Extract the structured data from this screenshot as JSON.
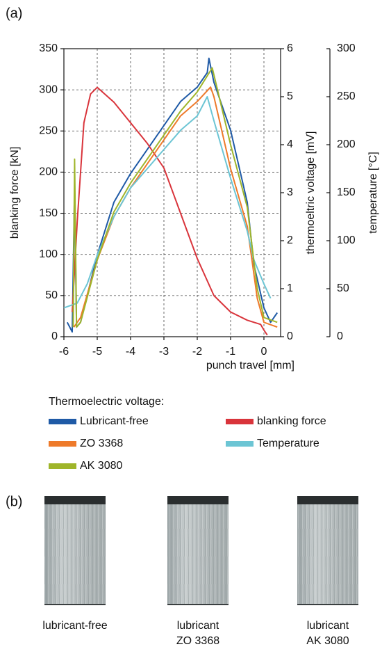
{
  "chart_data": {
    "type": "line",
    "panel_label": "(a)",
    "xlabel": "punch travel [mm]",
    "ylabel": "blanking force [kN]",
    "y2label": "thermoeltric voltage [mV]",
    "y3label": "temperature [°C]",
    "xlim": [
      -6,
      0.5
    ],
    "xticks": [
      -6,
      -5,
      -4,
      -3,
      -2,
      -1,
      0
    ],
    "ylim": [
      0,
      350
    ],
    "yticks": [
      0,
      50,
      100,
      150,
      200,
      250,
      300,
      350
    ],
    "y2lim": [
      0,
      6
    ],
    "y2ticks": [
      0,
      1,
      2,
      3,
      4,
      5,
      6
    ],
    "y3lim": [
      0,
      300
    ],
    "y3ticks": [
      0,
      50,
      100,
      150,
      200,
      250,
      300
    ],
    "grid": true,
    "legend_title": "Thermoelectric voltage:",
    "series": [
      {
        "name": "Lubricant-free",
        "color": "#1f5aa6",
        "axis": "y2",
        "x": [
          -5.9,
          -5.75,
          -5.68,
          -5.62,
          -5.5,
          -5.0,
          -4.5,
          -4.0,
          -3.5,
          -3.0,
          -2.5,
          -2.0,
          -1.7,
          -1.65,
          -1.5,
          -1.0,
          -0.5,
          -0.3,
          0.0,
          0.2,
          0.4
        ],
        "values": [
          0.3,
          0.1,
          3.1,
          0.2,
          0.3,
          1.7,
          2.8,
          3.4,
          3.9,
          4.4,
          4.9,
          5.2,
          5.5,
          5.8,
          5.3,
          4.3,
          2.8,
          1.5,
          0.6,
          0.3,
          0.5
        ]
      },
      {
        "name": "blanking force",
        "color": "#d9343b",
        "axis": "y",
        "x": [
          -5.75,
          -5.6,
          -5.4,
          -5.2,
          -5.0,
          -4.5,
          -4.0,
          -3.5,
          -3.0,
          -2.5,
          -2.0,
          -1.5,
          -1.0,
          -0.5,
          -0.1,
          0.0,
          0.1
        ],
        "values": [
          30,
          140,
          260,
          295,
          303,
          285,
          260,
          235,
          205,
          150,
          95,
          50,
          30,
          20,
          15,
          8,
          2
        ]
      },
      {
        "name": "ZO 3368",
        "color": "#ee7a2a",
        "axis": "y2",
        "x": [
          -5.7,
          -5.5,
          -5.0,
          -4.5,
          -4.0,
          -3.5,
          -3.0,
          -2.5,
          -2.0,
          -1.6,
          -1.5,
          -1.0,
          -0.5,
          -0.2,
          0.0,
          0.4
        ],
        "values": [
          0.2,
          0.4,
          1.6,
          2.5,
          3.1,
          3.6,
          4.1,
          4.6,
          4.9,
          5.2,
          5.0,
          3.5,
          2.3,
          0.8,
          0.3,
          0.2
        ]
      },
      {
        "name": "Temperature",
        "color": "#6cc5d4",
        "axis": "y3",
        "x": [
          -6.0,
          -5.6,
          -5.3,
          -5.0,
          -4.5,
          -4.0,
          -3.5,
          -3.0,
          -2.5,
          -2.0,
          -1.7,
          -1.5,
          -1.0,
          -0.5,
          -0.3,
          0.0,
          0.2
        ],
        "values": [
          30,
          35,
          55,
          85,
          125,
          155,
          175,
          195,
          215,
          230,
          250,
          225,
          165,
          110,
          80,
          55,
          40
        ]
      },
      {
        "name": "AK 3080",
        "color": "#9fb52a",
        "axis": "y2",
        "x": [
          -5.72,
          -5.68,
          -5.62,
          -5.5,
          -5.0,
          -4.5,
          -4.0,
          -3.5,
          -3.0,
          -2.5,
          -2.0,
          -1.55,
          -1.0,
          -0.5,
          -0.2,
          0.0,
          0.4
        ],
        "values": [
          0.2,
          3.7,
          0.2,
          0.3,
          1.6,
          2.6,
          3.2,
          3.7,
          4.2,
          4.7,
          5.1,
          5.6,
          4.0,
          2.7,
          1.0,
          0.4,
          0.3
        ]
      }
    ]
  },
  "panel_b": {
    "label": "(b)",
    "samples": [
      {
        "caption": [
          "lubricant-free"
        ]
      },
      {
        "caption": [
          "lubricant",
          "ZO 3368"
        ]
      },
      {
        "caption": [
          "lubricant",
          "AK 3080"
        ]
      }
    ]
  }
}
